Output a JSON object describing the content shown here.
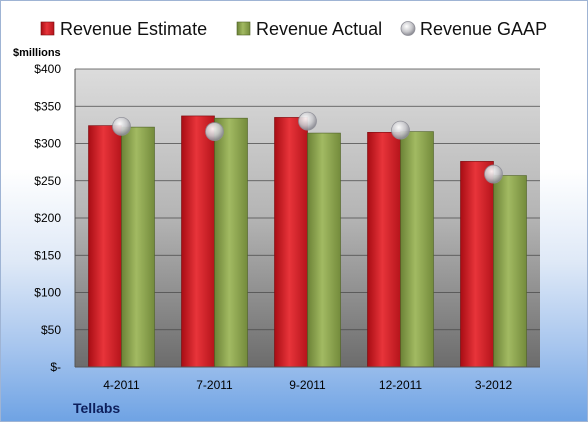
{
  "chart_data": {
    "type": "bar",
    "categories": [
      "4-2011",
      "7-2011",
      "9-2011",
      "12-2011",
      "3-2012"
    ],
    "series": [
      {
        "name": "Revenue Estimate",
        "kind": "bar",
        "color": "#d11f26",
        "values": [
          324,
          337,
          335,
          315,
          276
        ]
      },
      {
        "name": "Revenue Actual",
        "kind": "bar",
        "color": "#8ca34d",
        "values": [
          322,
          334,
          314,
          316,
          257
        ]
      },
      {
        "name": "Revenue GAAP",
        "kind": "marker",
        "color": "#c0c0c8",
        "values": [
          323,
          316,
          330,
          318,
          259
        ]
      }
    ],
    "ylabel": "$millions",
    "ylim": [
      0,
      400
    ],
    "yticks": [
      0,
      50,
      100,
      150,
      200,
      250,
      300,
      350,
      400
    ],
    "ytick_labels": [
      "$-",
      "$50",
      "$100",
      "$150",
      "$200",
      "$250",
      "$300",
      "$350",
      "$400"
    ],
    "grid": true,
    "legend_position": "top",
    "footer": "Tellabs"
  }
}
